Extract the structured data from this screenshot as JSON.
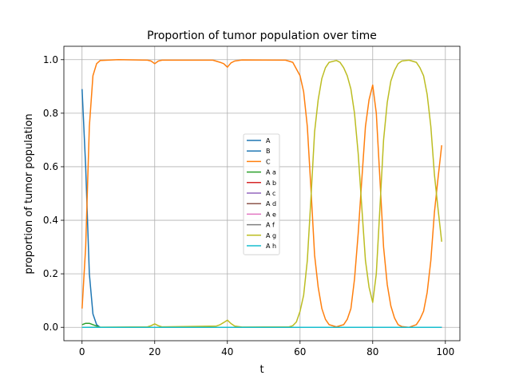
{
  "chart_data": {
    "type": "line",
    "title": "Proportion of tumor population over time",
    "xlabel": "t",
    "ylabel": "proportion of tumor population",
    "xlim": [
      -5,
      104
    ],
    "ylim": [
      -0.05,
      1.05
    ],
    "xticks": [
      0,
      20,
      40,
      60,
      80,
      100
    ],
    "yticks": [
      0.0,
      0.2,
      0.4,
      0.6,
      0.8,
      1.0
    ],
    "xtick_labels": [
      "0",
      "20",
      "40",
      "60",
      "80",
      "100"
    ],
    "ytick_labels": [
      "0.0",
      "0.2",
      "0.4",
      "0.6",
      "0.8",
      "1.0"
    ],
    "grid": true,
    "legend_position": "center-right",
    "series": [
      {
        "name": "A",
        "color": "#1f77b4",
        "points": [
          [
            0,
            0.89
          ],
          [
            1,
            0.6
          ],
          [
            2,
            0.2
          ],
          [
            3,
            0.05
          ],
          [
            4,
            0.01
          ],
          [
            5,
            0.0
          ],
          [
            99,
            0.0
          ]
        ]
      },
      {
        "name": "B",
        "color": "#1f77b4",
        "points": [
          [
            0,
            0.0
          ],
          [
            99,
            0.0
          ]
        ]
      },
      {
        "name": "C",
        "color": "#ff7f0e",
        "points": [
          [
            0,
            0.07
          ],
          [
            1,
            0.3
          ],
          [
            2,
            0.75
          ],
          [
            3,
            0.94
          ],
          [
            4,
            0.985
          ],
          [
            5,
            0.997
          ],
          [
            10,
            1.0
          ],
          [
            18,
            0.998
          ],
          [
            19,
            0.995
          ],
          [
            20,
            0.985
          ],
          [
            21,
            0.995
          ],
          [
            22,
            0.998
          ],
          [
            36,
            0.998
          ],
          [
            38,
            0.99
          ],
          [
            39,
            0.985
          ],
          [
            40,
            0.972
          ],
          [
            41,
            0.988
          ],
          [
            42,
            0.995
          ],
          [
            44,
            0.999
          ],
          [
            56,
            0.998
          ],
          [
            58,
            0.99
          ],
          [
            60,
            0.94
          ],
          [
            61,
            0.88
          ],
          [
            62,
            0.75
          ],
          [
            63,
            0.52
          ],
          [
            64,
            0.27
          ],
          [
            65,
            0.15
          ],
          [
            66,
            0.07
          ],
          [
            67,
            0.03
          ],
          [
            68,
            0.01
          ],
          [
            70,
            0.002
          ],
          [
            72,
            0.01
          ],
          [
            73,
            0.03
          ],
          [
            74,
            0.07
          ],
          [
            75,
            0.18
          ],
          [
            76,
            0.35
          ],
          [
            77,
            0.55
          ],
          [
            78,
            0.75
          ],
          [
            79,
            0.85
          ],
          [
            80,
            0.905
          ],
          [
            81,
            0.8
          ],
          [
            82,
            0.55
          ],
          [
            83,
            0.3
          ],
          [
            84,
            0.16
          ],
          [
            85,
            0.08
          ],
          [
            86,
            0.035
          ],
          [
            87,
            0.01
          ],
          [
            88,
            0.003
          ],
          [
            90,
            0.0
          ],
          [
            92,
            0.01
          ],
          [
            93,
            0.03
          ],
          [
            94,
            0.06
          ],
          [
            95,
            0.13
          ],
          [
            96,
            0.25
          ],
          [
            97,
            0.43
          ],
          [
            98,
            0.56
          ],
          [
            99,
            0.68
          ]
        ]
      },
      {
        "name": "A a",
        "color": "#2ca02c",
        "points": [
          [
            0,
            0.01
          ],
          [
            1,
            0.015
          ],
          [
            2,
            0.015
          ],
          [
            3,
            0.01
          ],
          [
            4,
            0.005
          ],
          [
            5,
            0.0
          ],
          [
            99,
            0.0
          ]
        ]
      },
      {
        "name": "A b",
        "color": "#d62728",
        "points": [
          [
            0,
            0.0
          ],
          [
            99,
            0.0
          ]
        ]
      },
      {
        "name": "A c",
        "color": "#9467bd",
        "points": [
          [
            0,
            0.0
          ],
          [
            99,
            0.0
          ]
        ]
      },
      {
        "name": "A d",
        "color": "#8c564b",
        "points": [
          [
            0,
            0.0
          ],
          [
            99,
            0.0
          ]
        ]
      },
      {
        "name": "A e",
        "color": "#e377c2",
        "points": [
          [
            0,
            0.0
          ],
          [
            99,
            0.0
          ]
        ]
      },
      {
        "name": "A f",
        "color": "#7f7f7f",
        "points": [
          [
            0,
            0.0
          ],
          [
            99,
            0.0
          ]
        ]
      },
      {
        "name": "A g",
        "color": "#bcbd22",
        "points": [
          [
            0,
            0.0
          ],
          [
            18,
            0.002
          ],
          [
            19,
            0.006
          ],
          [
            20,
            0.013
          ],
          [
            21,
            0.006
          ],
          [
            22,
            0.002
          ],
          [
            37,
            0.005
          ],
          [
            38,
            0.01
          ],
          [
            39,
            0.018
          ],
          [
            40,
            0.027
          ],
          [
            41,
            0.014
          ],
          [
            42,
            0.005
          ],
          [
            44,
            0.001
          ],
          [
            57,
            0.002
          ],
          [
            58,
            0.006
          ],
          [
            59,
            0.02
          ],
          [
            60,
            0.06
          ],
          [
            61,
            0.12
          ],
          [
            62,
            0.25
          ],
          [
            63,
            0.48
          ],
          [
            64,
            0.73
          ],
          [
            65,
            0.85
          ],
          [
            66,
            0.93
          ],
          [
            67,
            0.97
          ],
          [
            68,
            0.99
          ],
          [
            70,
            0.997
          ],
          [
            71,
            0.99
          ],
          [
            72,
            0.97
          ],
          [
            73,
            0.94
          ],
          [
            74,
            0.89
          ],
          [
            75,
            0.8
          ],
          [
            76,
            0.65
          ],
          [
            77,
            0.45
          ],
          [
            78,
            0.25
          ],
          [
            79,
            0.15
          ],
          [
            80,
            0.093
          ],
          [
            81,
            0.2
          ],
          [
            82,
            0.45
          ],
          [
            83,
            0.7
          ],
          [
            84,
            0.84
          ],
          [
            85,
            0.92
          ],
          [
            86,
            0.96
          ],
          [
            87,
            0.985
          ],
          [
            88,
            0.995
          ],
          [
            90,
            0.998
          ],
          [
            92,
            0.99
          ],
          [
            93,
            0.97
          ],
          [
            94,
            0.94
          ],
          [
            95,
            0.87
          ],
          [
            96,
            0.75
          ],
          [
            97,
            0.57
          ],
          [
            98,
            0.44
          ],
          [
            99,
            0.32
          ]
        ]
      },
      {
        "name": "A h",
        "color": "#17becf",
        "points": [
          [
            0,
            0.0
          ],
          [
            99,
            0.0
          ]
        ]
      }
    ]
  }
}
